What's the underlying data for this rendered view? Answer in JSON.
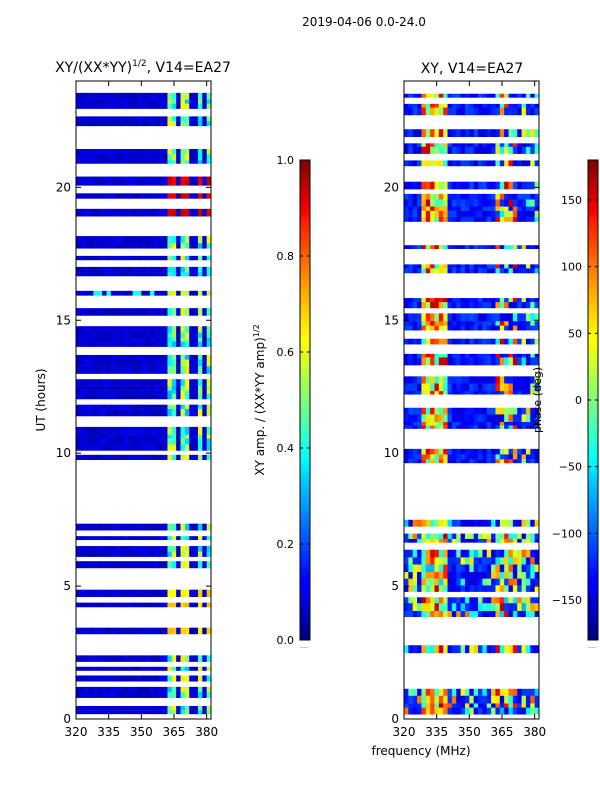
{
  "figure_title": "2019-04-06 0.0-24.0",
  "x_axis_label": "frequency (MHz)",
  "chart_data": [
    {
      "type": "heatmap",
      "title_base": "XY/(XX*YY)",
      "title_exp": "1/2",
      "title_rest": ", V14=EA27",
      "ylabel": "UT (hours)",
      "xlim": [
        320,
        382
      ],
      "ylim": [
        0,
        24
      ],
      "xticks": [
        320,
        335,
        350,
        365,
        380
      ],
      "yticks": [
        0,
        5,
        10,
        15,
        20
      ],
      "colorbar": {
        "label_base": "XY amp. / (XX*YY amp)",
        "label_exp": "1/2",
        "range": [
          0.0,
          1.0
        ],
        "ticks": [
          "0.0",
          "0.2",
          "0.4",
          "0.6",
          "0.8",
          "1.0"
        ],
        "dots": "....."
      },
      "data_gap_hours": [
        7.7,
        9.1
      ],
      "hot_regions": [
        {
          "freq": [
            363,
            382
          ],
          "hours": [
            18.8,
            20.3
          ],
          "level": 0.95
        },
        {
          "freq": [
            363,
            382
          ],
          "hours": [
            3.0,
            4.6
          ],
          "level": 0.7
        }
      ]
    },
    {
      "type": "heatmap",
      "title_base": "XY, V14=EA27",
      "title_exp": "",
      "title_rest": "",
      "ylabel": "",
      "xlim": [
        320,
        382
      ],
      "ylim": [
        0,
        24
      ],
      "xticks": [
        320,
        335,
        350,
        365,
        380
      ],
      "yticks": [
        0,
        5,
        10,
        15,
        20
      ],
      "colorbar": {
        "label_base": "phase (deg)",
        "label_exp": "",
        "range": [
          -180,
          180
        ],
        "ticks": [
          "-150",
          "-100",
          "-50",
          "0",
          "50",
          "100",
          "150"
        ],
        "dots": "....."
      },
      "data_gap_hours": [
        7.7,
        9.1
      ]
    }
  ]
}
